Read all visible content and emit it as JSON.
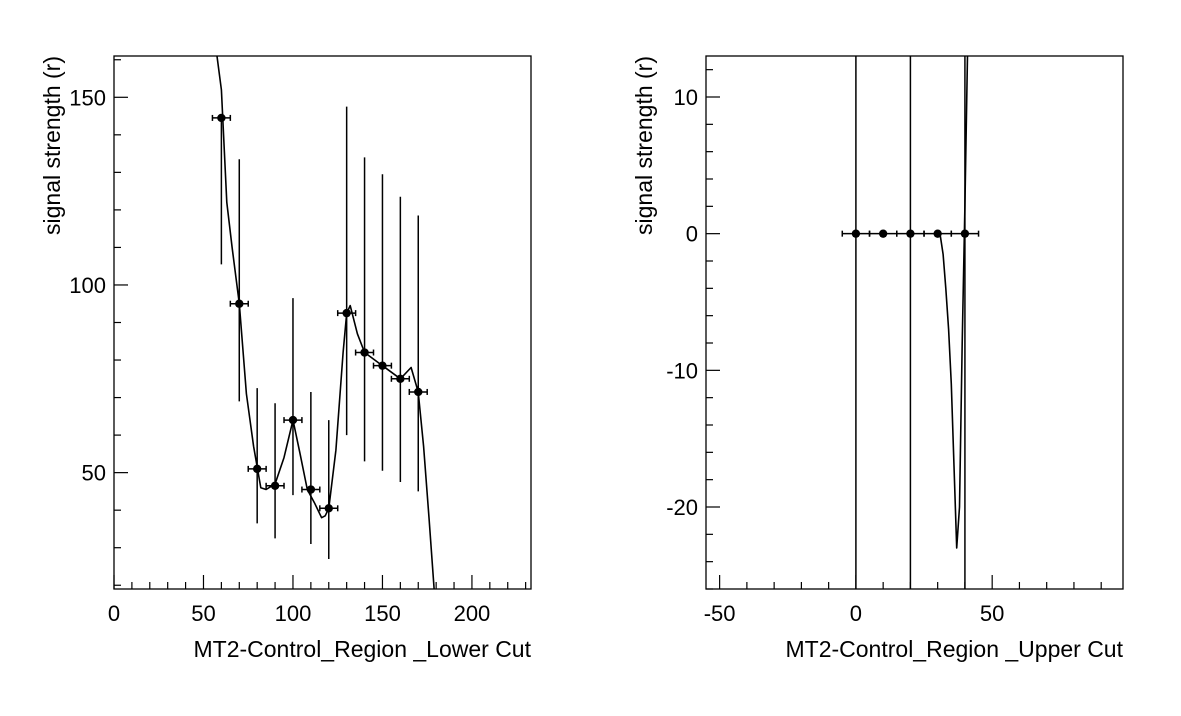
{
  "chart_data": [
    {
      "type": "scatter",
      "xlabel": "MT2-Control_Region _Lower Cut",
      "ylabel": "signal strength (r)",
      "xlim": [
        0,
        233
      ],
      "ylim": [
        19,
        161
      ],
      "xticks": [
        0,
        50,
        100,
        150,
        200
      ],
      "yticks": [
        50,
        100,
        150
      ],
      "points": [
        {
          "x": 60,
          "y": 144.5,
          "yerr_up": 144.5,
          "yerr_down": 105.5
        },
        {
          "x": 70,
          "y": 95,
          "yerr_up": 133.5,
          "yerr_down": 69
        },
        {
          "x": 80,
          "y": 51,
          "yerr_up": 72.5,
          "yerr_down": 36.5
        },
        {
          "x": 90,
          "y": 46.5,
          "yerr_up": 68.5,
          "yerr_down": 32.5
        },
        {
          "x": 100,
          "y": 64,
          "yerr_up": 96.5,
          "yerr_down": 44
        },
        {
          "x": 110,
          "y": 45.5,
          "yerr_up": 71.5,
          "yerr_down": 31
        },
        {
          "x": 120,
          "y": 40.5,
          "yerr_up": 64,
          "yerr_down": 27
        },
        {
          "x": 130,
          "y": 92.5,
          "yerr_up": 147.5,
          "yerr_down": 60
        },
        {
          "x": 140,
          "y": 82,
          "yerr_up": 134,
          "yerr_down": 53
        },
        {
          "x": 150,
          "y": 78.5,
          "yerr_up": 129.5,
          "yerr_down": 50.5
        },
        {
          "x": 160,
          "y": 75,
          "yerr_up": 123.5,
          "yerr_down": 47.5
        },
        {
          "x": 170,
          "y": 71.5,
          "yerr_up": 118.5,
          "yerr_down": 45
        }
      ],
      "xerr": 5,
      "curve": [
        [
          57,
          163
        ],
        [
          60,
          152
        ],
        [
          63,
          122
        ],
        [
          66,
          110
        ],
        [
          70,
          95
        ],
        [
          74,
          71
        ],
        [
          78,
          57
        ],
        [
          82,
          46
        ],
        [
          85,
          45.5
        ],
        [
          90,
          47
        ],
        [
          95,
          54
        ],
        [
          100,
          64
        ],
        [
          104,
          55
        ],
        [
          108,
          45.5
        ],
        [
          112,
          42
        ],
        [
          116,
          38
        ],
        [
          118,
          38.5
        ],
        [
          120,
          40.5
        ],
        [
          124,
          56
        ],
        [
          128,
          82
        ],
        [
          130,
          92.5
        ],
        [
          132,
          94.5
        ],
        [
          136,
          87
        ],
        [
          140,
          82
        ],
        [
          150,
          78.5
        ],
        [
          160,
          75
        ],
        [
          166,
          78
        ],
        [
          170,
          71.5
        ],
        [
          173,
          57
        ],
        [
          176,
          38
        ],
        [
          179,
          18
        ]
      ]
    },
    {
      "type": "scatter",
      "xlabel": "MT2-Control_Region _Upper Cut",
      "ylabel": "signal strength (r)",
      "xlim": [
        -55,
        98
      ],
      "ylim": [
        -26,
        13
      ],
      "xticks": [
        -50,
        0,
        50
      ],
      "yticks": [
        -20,
        -10,
        0,
        10
      ],
      "points": [
        {
          "x": 0,
          "y": 0
        },
        {
          "x": 10,
          "y": 0
        },
        {
          "x": 20,
          "y": 0
        },
        {
          "x": 30,
          "y": 0
        },
        {
          "x": 40,
          "y": 0
        }
      ],
      "xerr": 5,
      "vlines": [
        0,
        20,
        40
      ],
      "curve": [
        [
          30,
          0
        ],
        [
          31,
          -0.2
        ],
        [
          32,
          -1.5
        ],
        [
          33,
          -4
        ],
        [
          34,
          -7
        ],
        [
          35,
          -11
        ],
        [
          36,
          -17
        ],
        [
          37,
          -23
        ],
        [
          38,
          -20
        ],
        [
          39,
          -8
        ],
        [
          40,
          2
        ],
        [
          41,
          13.5
        ]
      ]
    }
  ]
}
